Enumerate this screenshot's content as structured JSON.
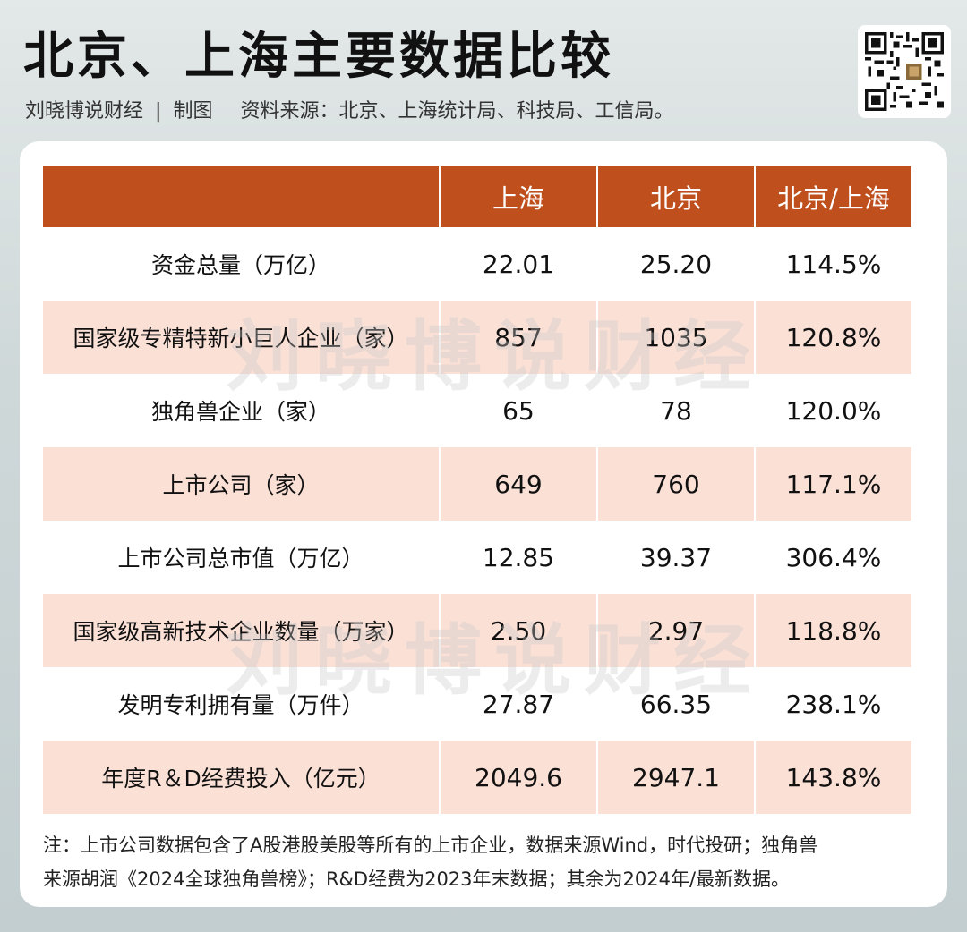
{
  "title": "北京、上海主要数据比较",
  "subtitle": {
    "author": "刘晓博说财经",
    "separator": "|",
    "label": "制图",
    "source": "资料来源：北京、上海统计局、科技局、工信局。"
  },
  "watermark": "刘晓博说财经",
  "table": {
    "headers": [
      "",
      "上海",
      "北京",
      "北京/上海"
    ],
    "rows": [
      [
        "资金总量（万亿）",
        "22.01",
        "25.20",
        "114.5%"
      ],
      [
        "国家级专精特新小巨人企业（家）",
        "857",
        "1035",
        "120.8%"
      ],
      [
        "独角兽企业（家）",
        "65",
        "78",
        "120.0%"
      ],
      [
        "上市公司（家）",
        "649",
        "760",
        "117.1%"
      ],
      [
        "上市公司总市值（万亿）",
        "12.85",
        "39.37",
        "306.4%"
      ],
      [
        "国家级高新技术企业数量（万家）",
        "2.50",
        "2.97",
        "118.8%"
      ],
      [
        "发明专利拥有量（万件）",
        "27.87",
        "66.35",
        "238.1%"
      ],
      [
        "年度R＆D经费投入（亿元）",
        "2049.6",
        "2947.1",
        "143.8%"
      ]
    ]
  },
  "note": {
    "line1": "注：上市公司数据包含了A股港股美股等所有的上市企业，数据来源Wind，时代投研；独角兽",
    "line2": "来源胡润《2024全球独角兽榜》；R&D经费为2023年末数据；其余为2024年/最新数据。"
  },
  "colors": {
    "header_bg": "#bf4f1d",
    "alt_row_bg": "#fbe0d6",
    "header_text": "#ffffff"
  }
}
